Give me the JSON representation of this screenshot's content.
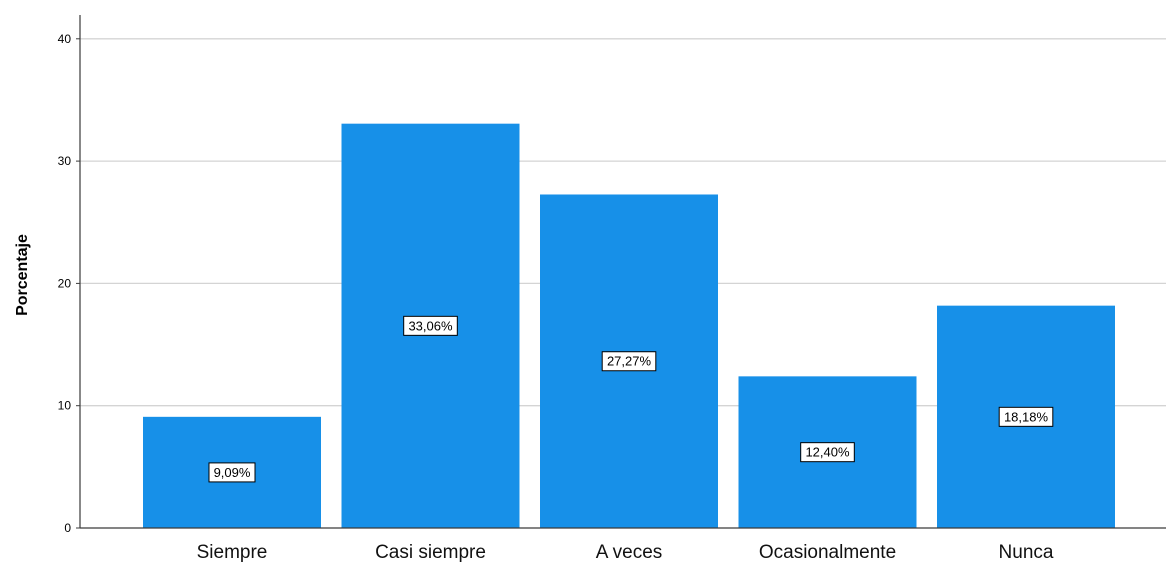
{
  "chart_data": {
    "type": "bar",
    "title": "",
    "xlabel": "",
    "ylabel": "Porcentaje",
    "categories": [
      "Siempre",
      "Casi siempre",
      "A veces",
      "Ocasionalmente",
      "Nunca"
    ],
    "values": [
      9.09,
      33.06,
      27.27,
      12.4,
      18.18
    ],
    "data_labels": [
      "9,09%",
      "33,06%",
      "27,27%",
      "12,40%",
      "18,18%"
    ],
    "ylim": [
      0,
      42
    ],
    "yticks": [
      0,
      10,
      20,
      30,
      40
    ],
    "ytick_labels": [
      "0",
      "10",
      "20",
      "30",
      "40"
    ],
    "grid": true,
    "legend": "none",
    "colors": {
      "bar": "#1790e8",
      "grid": "#d4d4d4",
      "axis": "#3a3a3a"
    }
  }
}
